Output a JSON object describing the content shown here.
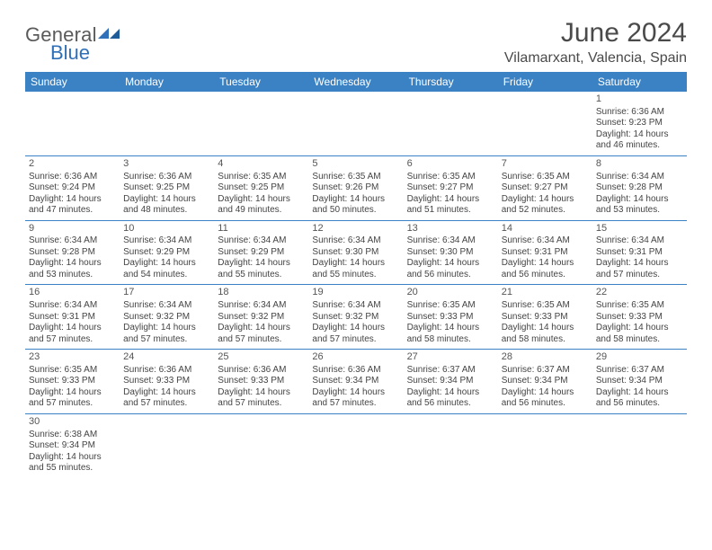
{
  "brand": {
    "part1": "General",
    "part2": "Blue"
  },
  "title": "June 2024",
  "location": "Vilamarxant, Valencia, Spain",
  "colors": {
    "header_bg": "#3b82c4",
    "header_text": "#ffffff",
    "border": "#3b82c4",
    "body_text": "#444444",
    "title_text": "#4a4a4a",
    "logo_gray": "#5a5a5a",
    "logo_blue": "#2f70b8",
    "background": "#ffffff"
  },
  "weekdays": [
    "Sunday",
    "Monday",
    "Tuesday",
    "Wednesday",
    "Thursday",
    "Friday",
    "Saturday"
  ],
  "weeks": [
    [
      null,
      null,
      null,
      null,
      null,
      null,
      {
        "n": "1",
        "sr": "Sunrise: 6:36 AM",
        "ss": "Sunset: 9:23 PM",
        "d1": "Daylight: 14 hours",
        "d2": "and 46 minutes."
      }
    ],
    [
      {
        "n": "2",
        "sr": "Sunrise: 6:36 AM",
        "ss": "Sunset: 9:24 PM",
        "d1": "Daylight: 14 hours",
        "d2": "and 47 minutes."
      },
      {
        "n": "3",
        "sr": "Sunrise: 6:36 AM",
        "ss": "Sunset: 9:25 PM",
        "d1": "Daylight: 14 hours",
        "d2": "and 48 minutes."
      },
      {
        "n": "4",
        "sr": "Sunrise: 6:35 AM",
        "ss": "Sunset: 9:25 PM",
        "d1": "Daylight: 14 hours",
        "d2": "and 49 minutes."
      },
      {
        "n": "5",
        "sr": "Sunrise: 6:35 AM",
        "ss": "Sunset: 9:26 PM",
        "d1": "Daylight: 14 hours",
        "d2": "and 50 minutes."
      },
      {
        "n": "6",
        "sr": "Sunrise: 6:35 AM",
        "ss": "Sunset: 9:27 PM",
        "d1": "Daylight: 14 hours",
        "d2": "and 51 minutes."
      },
      {
        "n": "7",
        "sr": "Sunrise: 6:35 AM",
        "ss": "Sunset: 9:27 PM",
        "d1": "Daylight: 14 hours",
        "d2": "and 52 minutes."
      },
      {
        "n": "8",
        "sr": "Sunrise: 6:34 AM",
        "ss": "Sunset: 9:28 PM",
        "d1": "Daylight: 14 hours",
        "d2": "and 53 minutes."
      }
    ],
    [
      {
        "n": "9",
        "sr": "Sunrise: 6:34 AM",
        "ss": "Sunset: 9:28 PM",
        "d1": "Daylight: 14 hours",
        "d2": "and 53 minutes."
      },
      {
        "n": "10",
        "sr": "Sunrise: 6:34 AM",
        "ss": "Sunset: 9:29 PM",
        "d1": "Daylight: 14 hours",
        "d2": "and 54 minutes."
      },
      {
        "n": "11",
        "sr": "Sunrise: 6:34 AM",
        "ss": "Sunset: 9:29 PM",
        "d1": "Daylight: 14 hours",
        "d2": "and 55 minutes."
      },
      {
        "n": "12",
        "sr": "Sunrise: 6:34 AM",
        "ss": "Sunset: 9:30 PM",
        "d1": "Daylight: 14 hours",
        "d2": "and 55 minutes."
      },
      {
        "n": "13",
        "sr": "Sunrise: 6:34 AM",
        "ss": "Sunset: 9:30 PM",
        "d1": "Daylight: 14 hours",
        "d2": "and 56 minutes."
      },
      {
        "n": "14",
        "sr": "Sunrise: 6:34 AM",
        "ss": "Sunset: 9:31 PM",
        "d1": "Daylight: 14 hours",
        "d2": "and 56 minutes."
      },
      {
        "n": "15",
        "sr": "Sunrise: 6:34 AM",
        "ss": "Sunset: 9:31 PM",
        "d1": "Daylight: 14 hours",
        "d2": "and 57 minutes."
      }
    ],
    [
      {
        "n": "16",
        "sr": "Sunrise: 6:34 AM",
        "ss": "Sunset: 9:31 PM",
        "d1": "Daylight: 14 hours",
        "d2": "and 57 minutes."
      },
      {
        "n": "17",
        "sr": "Sunrise: 6:34 AM",
        "ss": "Sunset: 9:32 PM",
        "d1": "Daylight: 14 hours",
        "d2": "and 57 minutes."
      },
      {
        "n": "18",
        "sr": "Sunrise: 6:34 AM",
        "ss": "Sunset: 9:32 PM",
        "d1": "Daylight: 14 hours",
        "d2": "and 57 minutes."
      },
      {
        "n": "19",
        "sr": "Sunrise: 6:34 AM",
        "ss": "Sunset: 9:32 PM",
        "d1": "Daylight: 14 hours",
        "d2": "and 57 minutes."
      },
      {
        "n": "20",
        "sr": "Sunrise: 6:35 AM",
        "ss": "Sunset: 9:33 PM",
        "d1": "Daylight: 14 hours",
        "d2": "and 58 minutes."
      },
      {
        "n": "21",
        "sr": "Sunrise: 6:35 AM",
        "ss": "Sunset: 9:33 PM",
        "d1": "Daylight: 14 hours",
        "d2": "and 58 minutes."
      },
      {
        "n": "22",
        "sr": "Sunrise: 6:35 AM",
        "ss": "Sunset: 9:33 PM",
        "d1": "Daylight: 14 hours",
        "d2": "and 58 minutes."
      }
    ],
    [
      {
        "n": "23",
        "sr": "Sunrise: 6:35 AM",
        "ss": "Sunset: 9:33 PM",
        "d1": "Daylight: 14 hours",
        "d2": "and 57 minutes."
      },
      {
        "n": "24",
        "sr": "Sunrise: 6:36 AM",
        "ss": "Sunset: 9:33 PM",
        "d1": "Daylight: 14 hours",
        "d2": "and 57 minutes."
      },
      {
        "n": "25",
        "sr": "Sunrise: 6:36 AM",
        "ss": "Sunset: 9:33 PM",
        "d1": "Daylight: 14 hours",
        "d2": "and 57 minutes."
      },
      {
        "n": "26",
        "sr": "Sunrise: 6:36 AM",
        "ss": "Sunset: 9:34 PM",
        "d1": "Daylight: 14 hours",
        "d2": "and 57 minutes."
      },
      {
        "n": "27",
        "sr": "Sunrise: 6:37 AM",
        "ss": "Sunset: 9:34 PM",
        "d1": "Daylight: 14 hours",
        "d2": "and 56 minutes."
      },
      {
        "n": "28",
        "sr": "Sunrise: 6:37 AM",
        "ss": "Sunset: 9:34 PM",
        "d1": "Daylight: 14 hours",
        "d2": "and 56 minutes."
      },
      {
        "n": "29",
        "sr": "Sunrise: 6:37 AM",
        "ss": "Sunset: 9:34 PM",
        "d1": "Daylight: 14 hours",
        "d2": "and 56 minutes."
      }
    ],
    [
      {
        "n": "30",
        "sr": "Sunrise: 6:38 AM",
        "ss": "Sunset: 9:34 PM",
        "d1": "Daylight: 14 hours",
        "d2": "and 55 minutes."
      },
      null,
      null,
      null,
      null,
      null,
      null
    ]
  ]
}
